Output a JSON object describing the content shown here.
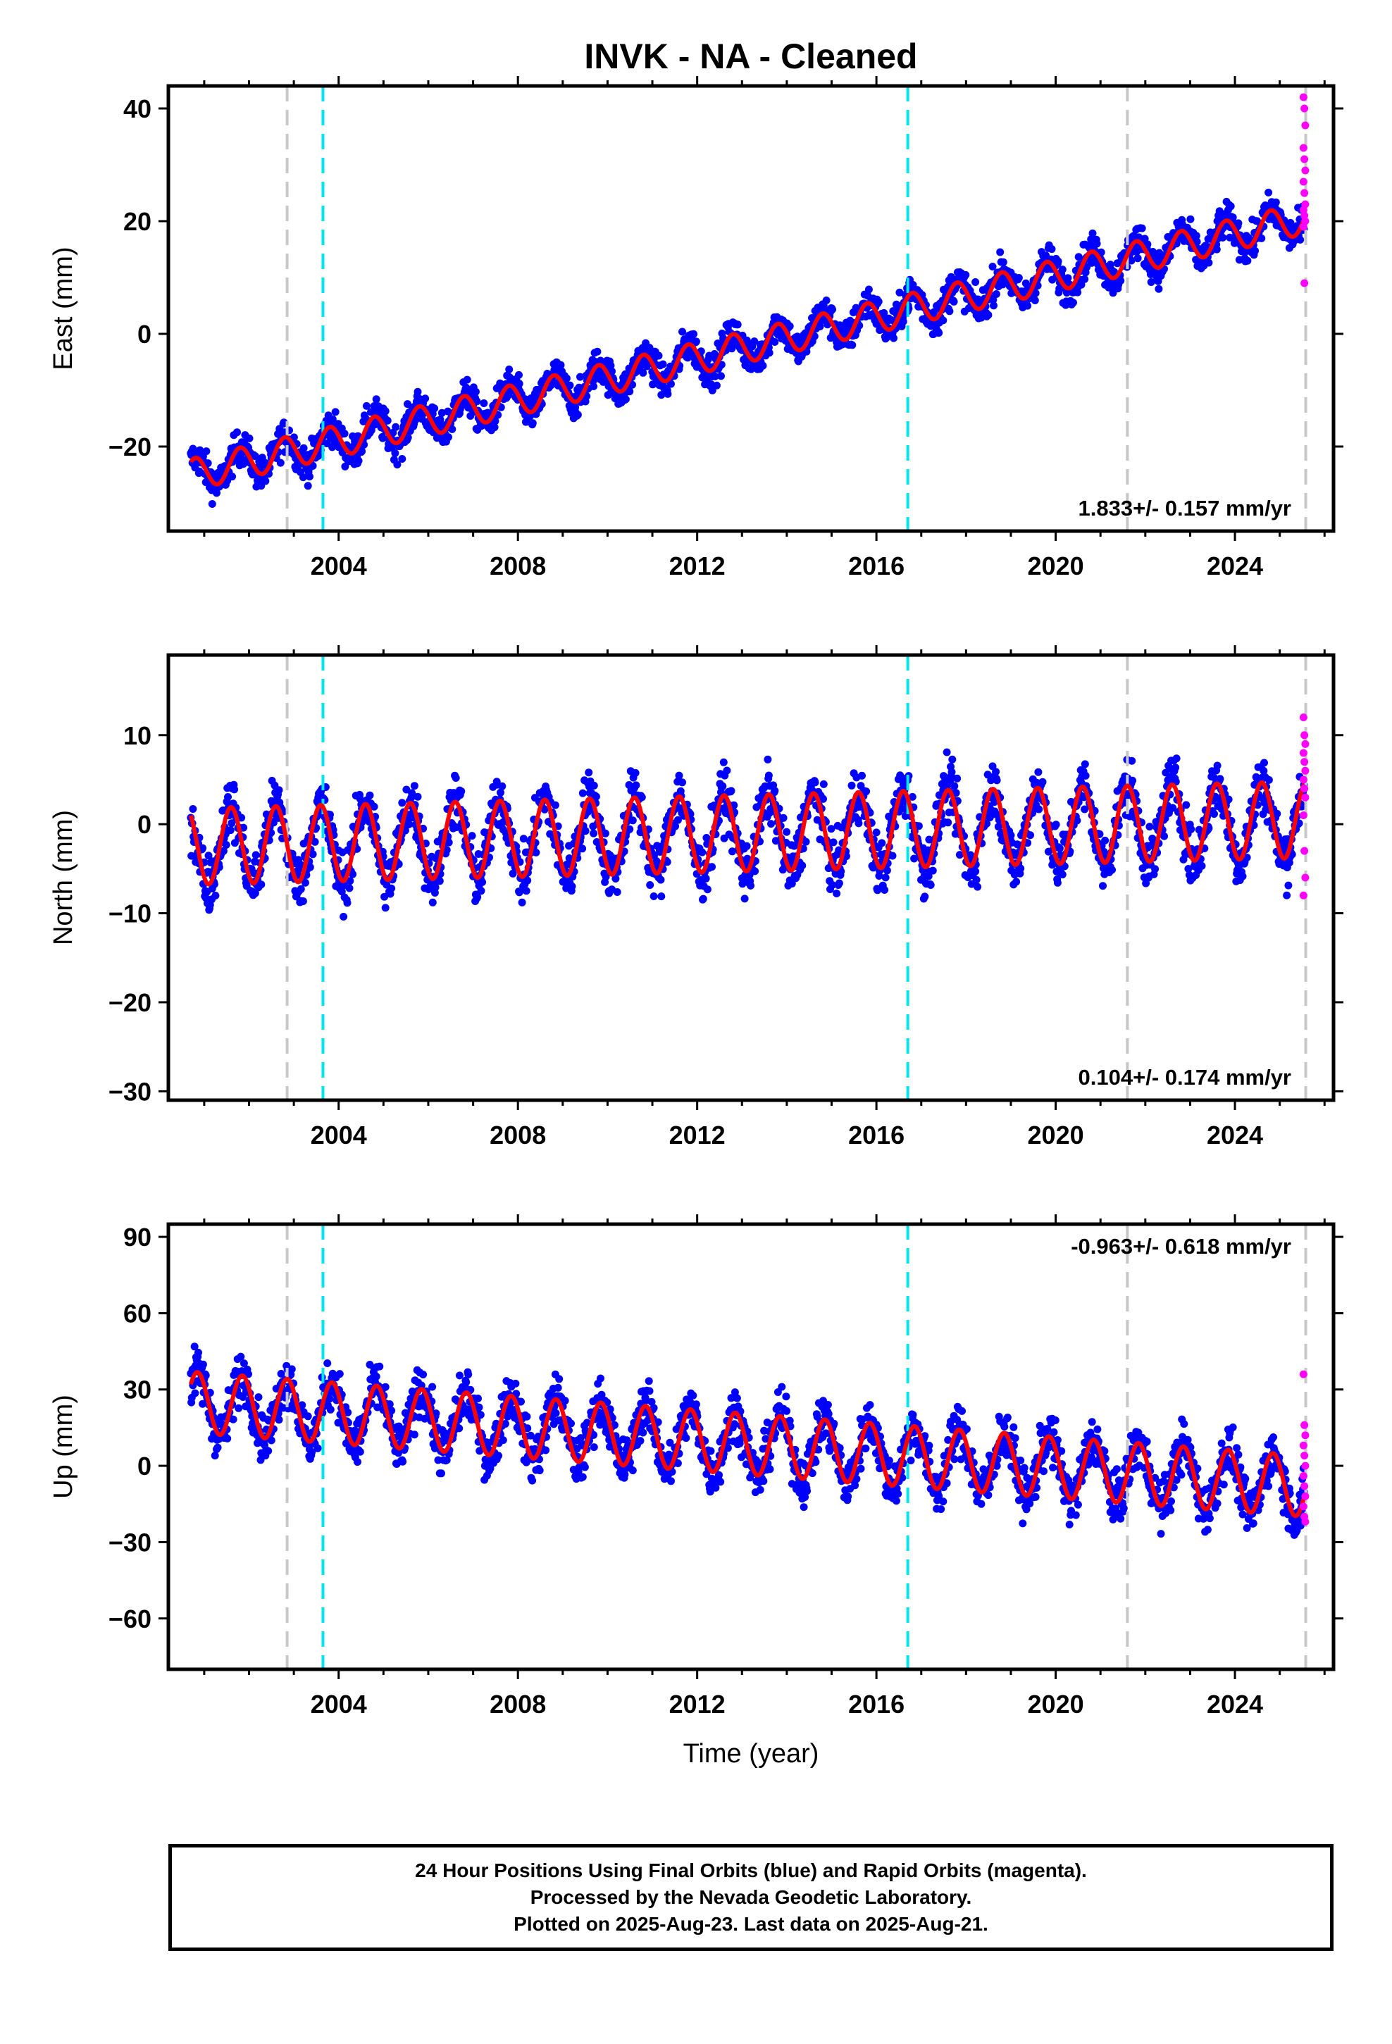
{
  "title": "INVK  - NA - Cleaned",
  "xlabel": "Time (year)",
  "colors": {
    "final_orbits": "#0000ff",
    "rapid_orbits": "#ff00ff",
    "model_fit": "#ff0000",
    "equipment_change": "#c8c8c8",
    "offset_event": "#00e5ee"
  },
  "chart_data": [
    {
      "type": "scatter",
      "panel": "east",
      "ylabel": "East (mm)",
      "rate_label": "1.833+/- 0.157 mm/yr",
      "xlim": [
        2000.2,
        2026.2
      ],
      "ylim": [
        -35,
        44
      ],
      "yticks": [
        -20,
        0,
        20,
        40
      ],
      "xticks": [
        "2004",
        "2008",
        "2012",
        "2016",
        "2020",
        "2024"
      ],
      "xtick_values": [
        2004,
        2008,
        2012,
        2016,
        2020,
        2024
      ],
      "grey_dashed_x": [
        2002.85,
        2021.6,
        2025.58
      ],
      "cyan_dashed_x": [
        2003.65,
        2016.7
      ],
      "start_year": 2000.7,
      "end_year": 2025.55,
      "model": {
        "trend_start": -25,
        "trend_end": 20.5,
        "annual_amp": 2.8,
        "annual_phase": 0.55,
        "noise": 2.2
      },
      "series": [
        {
          "name": "Final Orbits",
          "color": "#0000ff"
        },
        {
          "name": "Rapid Orbits",
          "color": "#ff00ff",
          "values_y": [
            42,
            40,
            37,
            33,
            31,
            29,
            27,
            25,
            23,
            22,
            21,
            20,
            19,
            9
          ]
        },
        {
          "name": "Model Fit",
          "color": "#ff0000"
        }
      ]
    },
    {
      "type": "scatter",
      "panel": "north",
      "ylabel": "North (mm)",
      "rate_label": "0.104+/- 0.174 mm/yr",
      "xlim": [
        2000.2,
        2026.2
      ],
      "ylim": [
        -31,
        19
      ],
      "yticks": [
        -30,
        -20,
        -10,
        0,
        10
      ],
      "xticks": [
        "2004",
        "2008",
        "2012",
        "2016",
        "2020",
        "2024"
      ],
      "xtick_values": [
        2004,
        2008,
        2012,
        2016,
        2020,
        2024
      ],
      "grey_dashed_x": [
        2002.85,
        2021.6,
        2025.58
      ],
      "cyan_dashed_x": [
        2003.65,
        2016.7
      ],
      "start_year": 2000.7,
      "end_year": 2025.55,
      "model": {
        "trend_start": -2.5,
        "trend_end": 0.5,
        "annual_amp": 4.3,
        "annual_phase": 0.35,
        "noise": 2.3
      },
      "series": [
        {
          "name": "Final Orbits",
          "color": "#0000ff"
        },
        {
          "name": "Rapid Orbits",
          "color": "#ff00ff",
          "values_y": [
            12,
            10,
            9,
            8,
            7,
            6,
            5,
            4,
            3,
            1,
            -3,
            -6,
            -8
          ]
        },
        {
          "name": "Model Fit",
          "color": "#ff0000"
        }
      ]
    },
    {
      "type": "scatter",
      "panel": "up",
      "ylabel": "Up (mm)",
      "rate_label": "-0.963+/- 0.618 mm/yr",
      "xlim": [
        2000.2,
        2026.2
      ],
      "ylim": [
        -80,
        95
      ],
      "yticks": [
        -60,
        -30,
        0,
        30,
        60,
        90
      ],
      "xticks": [
        "2004",
        "2008",
        "2012",
        "2016",
        "2020",
        "2024"
      ],
      "xtick_values": [
        2004,
        2008,
        2012,
        2016,
        2020,
        2024
      ],
      "grey_dashed_x": [
        2002.85,
        2021.6,
        2025.58
      ],
      "cyan_dashed_x": [
        2003.65,
        2016.7
      ],
      "start_year": 2000.7,
      "end_year": 2025.55,
      "model": {
        "trend_start": 25,
        "trend_end": -8,
        "annual_amp": 12,
        "annual_phase": 0.6,
        "noise": 7
      },
      "series": [
        {
          "name": "Final Orbits",
          "color": "#0000ff"
        },
        {
          "name": "Rapid Orbits",
          "color": "#ff00ff",
          "values_y": [
            36,
            16,
            12,
            8,
            4,
            0,
            -4,
            -8,
            -12,
            -16,
            -20,
            -22
          ]
        },
        {
          "name": "Model Fit",
          "color": "#ff0000"
        }
      ]
    }
  ],
  "footer": {
    "line1": "24 Hour Positions Using Final Orbits (blue) and Rapid Orbits (magenta).",
    "line2": "Processed by the Nevada Geodetic Laboratory.",
    "line3": "Plotted on 2025-Aug-23. Last data on 2025-Aug-21."
  }
}
